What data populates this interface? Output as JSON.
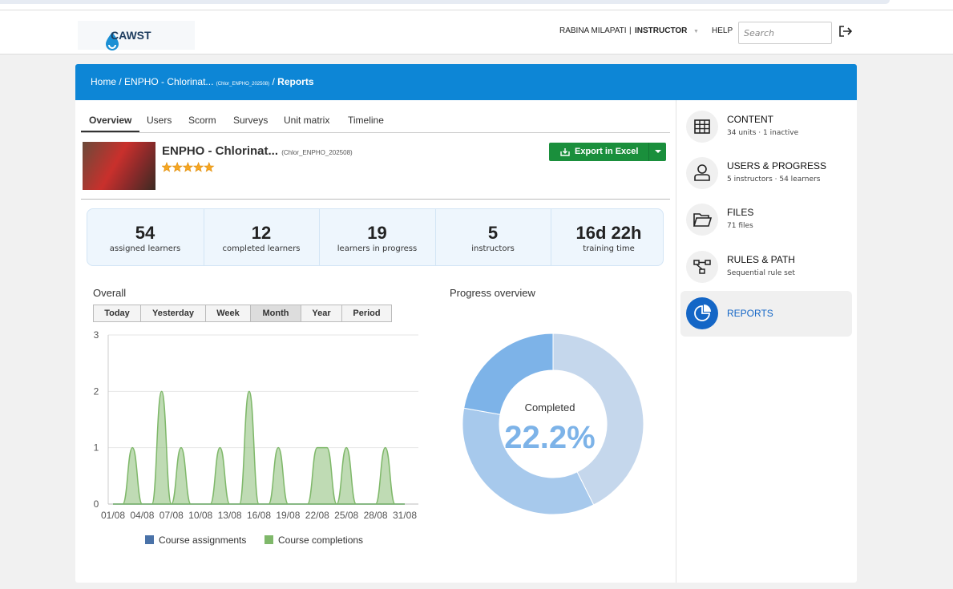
{
  "header": {
    "logo": "CAWST",
    "user_name": "RABINA MILAPATI",
    "separator": "|",
    "role": "INSTRUCTOR",
    "help": "HELP",
    "search_placeholder": "Search"
  },
  "breadcrumb": {
    "items": [
      "Home",
      "ENPHO - Chlorinat..."
    ],
    "code": "(Chlor_ENPHO_202508)",
    "current": "Reports",
    "separator": "/"
  },
  "tabs": {
    "items": [
      "Overview",
      "Users",
      "Scorm",
      "Surveys",
      "Unit matrix",
      "Timeline"
    ],
    "active": 0
  },
  "course": {
    "title": "ENPHO - Chlorinat...",
    "code": "(Chlor_ENPHO_202508)",
    "rating": 5,
    "export_button": "Export in Excel"
  },
  "stats": [
    {
      "value": 54,
      "label": "assigned learners"
    },
    {
      "value": 12,
      "label": "completed learners"
    },
    {
      "value": 19,
      "label": "learners in progress"
    },
    {
      "value": 5,
      "label": "instructors"
    },
    {
      "value": "16d 22h",
      "label": "training time"
    }
  ],
  "sidebar": {
    "items": [
      {
        "title": "CONTENT",
        "subtitle": "34 units · 1 inactive"
      },
      {
        "title": "USERS & PROGRESS",
        "subtitle": "5 instructors · 54 learners"
      },
      {
        "title": "FILES",
        "subtitle": "71 files"
      },
      {
        "title": "RULES & PATH",
        "subtitle": "Sequential rule set"
      },
      {
        "title": "REPORTS"
      }
    ],
    "active": 4
  },
  "chart_data": [
    {
      "type": "area",
      "title": "Overall",
      "range_buttons": [
        "Today",
        "Yesterday",
        "Week",
        "Month",
        "Year",
        "Period"
      ],
      "active_range": 3,
      "categories": [
        "01/08",
        null,
        null,
        "04/08",
        null,
        null,
        "07/08",
        null,
        null,
        "10/08",
        null,
        null,
        "13/08",
        null,
        null,
        "16/08",
        null,
        null,
        "19/08",
        null,
        null,
        "22/08",
        null,
        null,
        "25/08",
        null,
        null,
        "28/08",
        null,
        null,
        "31/08"
      ],
      "series": [
        {
          "name": "Course assignments",
          "color": "#4a72a8",
          "values": [
            0,
            0,
            0,
            0,
            0,
            0,
            0,
            0,
            0,
            0,
            0,
            0,
            0,
            0,
            0,
            0,
            0,
            0,
            0,
            0,
            0,
            0,
            0,
            0,
            0,
            0,
            0,
            0,
            0,
            0,
            0
          ]
        },
        {
          "name": "Course completions",
          "color": "#7fb86a",
          "values": [
            0,
            0,
            1,
            0,
            0,
            2,
            0,
            1,
            0,
            0,
            0,
            1,
            0,
            0,
            2,
            0,
            0,
            1,
            0,
            0,
            0,
            1,
            1,
            0,
            1,
            0,
            0,
            0,
            1,
            0,
            0
          ]
        }
      ],
      "ylim": [
        0,
        3
      ],
      "yticks": [
        0,
        1,
        2,
        3
      ],
      "grid": true,
      "legend": "bottom"
    },
    {
      "type": "donut",
      "title": "Progress overview",
      "values": [
        42.6,
        35.2,
        22.2
      ],
      "colors": [
        "#c5d7ec",
        "#a7c9ec",
        "#7db3e8"
      ],
      "value_labels": [
        null,
        null,
        "22.2%"
      ],
      "center_label": "Completed"
    }
  ]
}
